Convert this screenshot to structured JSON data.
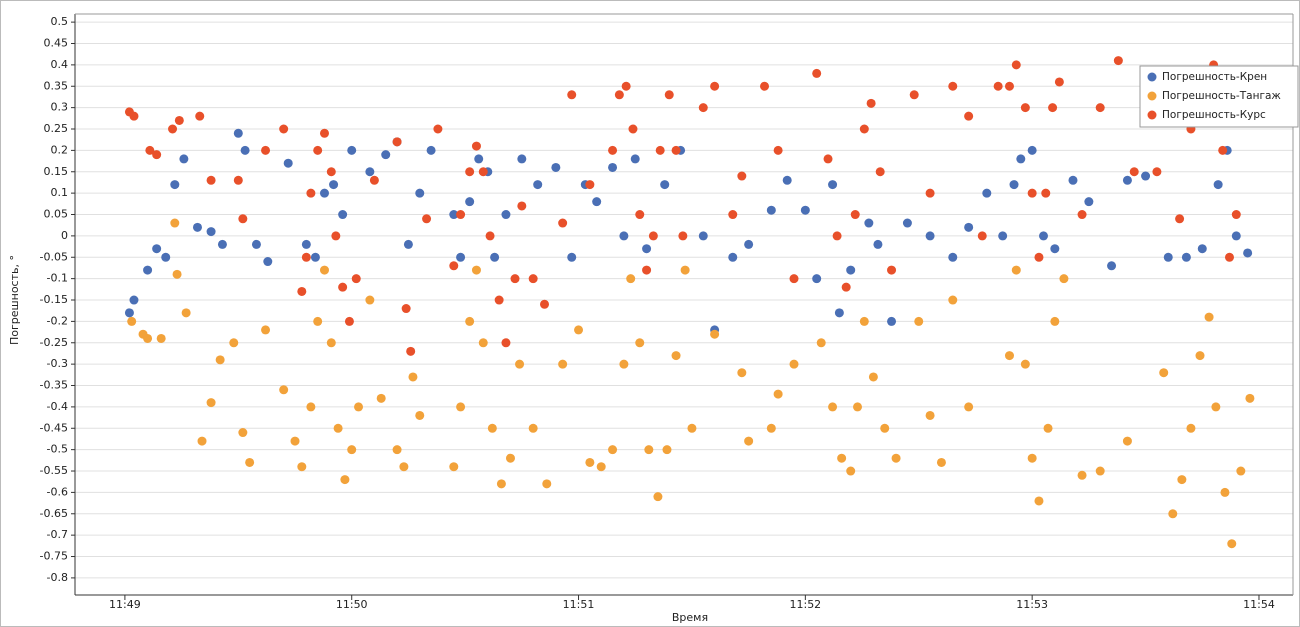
{
  "chart_data": {
    "type": "scatter",
    "x_label": "Время",
    "y_label": "Погрешность, °",
    "xlim": [
      708.78,
      714.15
    ],
    "xticks": [
      {
        "value": 709,
        "label": "11:49"
      },
      {
        "value": 710,
        "label": "11:50"
      },
      {
        "value": 711,
        "label": "11:51"
      },
      {
        "value": 712,
        "label": "11:52"
      },
      {
        "value": 713,
        "label": "11:53"
      },
      {
        "value": 714,
        "label": "11:54"
      }
    ],
    "ylim": [
      -0.84,
      0.519
    ],
    "yticks": [
      0.5,
      0.45,
      0.4,
      0.35,
      0.3,
      0.25,
      0.2,
      0.15,
      0.1,
      0.05,
      0,
      -0.05,
      -0.1,
      -0.15,
      -0.2,
      -0.25,
      -0.3,
      -0.35,
      -0.4,
      -0.45,
      -0.5,
      -0.55,
      -0.6,
      -0.65,
      -0.7,
      -0.75,
      -0.8
    ],
    "grid": true,
    "legend": "top-right",
    "series": [
      {
        "name": "Погрешность-Крен",
        "color": "#4a6fb5",
        "x": [
          709.02,
          709.04,
          709.1,
          709.14,
          709.18,
          709.22,
          709.26,
          709.32,
          709.38,
          709.43,
          709.5,
          709.53,
          709.58,
          709.63,
          709.72,
          709.8,
          709.84,
          709.88,
          709.92,
          709.96,
          710.0,
          710.08,
          710.15,
          710.2,
          710.25,
          710.3,
          710.35,
          710.45,
          710.48,
          710.52,
          710.56,
          710.6,
          710.63,
          710.68,
          710.75,
          710.82,
          710.9,
          710.97,
          711.03,
          711.08,
          711.15,
          711.2,
          711.25,
          711.3,
          711.38,
          711.45,
          711.55,
          711.6,
          711.68,
          711.75,
          711.85,
          711.92,
          712.0,
          712.05,
          712.12,
          712.15,
          712.2,
          712.28,
          712.32,
          712.38,
          712.45,
          712.55,
          712.65,
          712.72,
          712.8,
          712.87,
          712.92,
          712.95,
          713.0,
          713.05,
          713.1,
          713.18,
          713.25,
          713.35,
          713.42,
          713.5,
          713.6,
          713.68,
          713.75,
          713.82,
          713.86,
          713.9,
          713.95
        ],
        "values": [
          -0.18,
          -0.15,
          -0.08,
          -0.03,
          -0.05,
          0.12,
          0.18,
          0.02,
          0.01,
          -0.02,
          0.24,
          0.2,
          -0.02,
          -0.06,
          0.17,
          -0.02,
          -0.05,
          0.1,
          0.12,
          0.05,
          0.2,
          0.15,
          0.19,
          0.22,
          -0.02,
          0.1,
          0.2,
          0.05,
          -0.05,
          0.08,
          0.18,
          0.15,
          -0.05,
          0.05,
          0.18,
          0.12,
          0.16,
          -0.05,
          0.12,
          0.08,
          0.16,
          0,
          0.18,
          -0.03,
          0.12,
          0.2,
          0,
          -0.22,
          -0.05,
          -0.02,
          0.06,
          0.13,
          0.06,
          -0.1,
          0.12,
          -0.18,
          -0.08,
          0.03,
          -0.02,
          -0.2,
          0.03,
          0,
          -0.05,
          0.02,
          0.1,
          0,
          0.12,
          0.18,
          0.2,
          0,
          -0.03,
          0.13,
          0.08,
          -0.07,
          0.13,
          0.14,
          -0.05,
          -0.05,
          -0.03,
          0.12,
          0.2,
          0,
          -0.04
        ]
      },
      {
        "name": "Погрешность-Тангаж",
        "color": "#f2a23a",
        "x": [
          709.03,
          709.08,
          709.1,
          709.16,
          709.22,
          709.23,
          709.27,
          709.34,
          709.38,
          709.42,
          709.48,
          709.52,
          709.55,
          709.62,
          709.7,
          709.75,
          709.78,
          709.82,
          709.85,
          709.88,
          709.91,
          709.94,
          709.97,
          710.0,
          710.03,
          710.08,
          710.13,
          710.2,
          710.23,
          710.27,
          710.3,
          710.45,
          710.48,
          710.52,
          710.55,
          710.58,
          710.62,
          710.66,
          710.7,
          710.74,
          710.8,
          710.86,
          710.93,
          711.0,
          711.05,
          711.1,
          711.15,
          711.2,
          711.23,
          711.27,
          711.31,
          711.35,
          711.39,
          711.43,
          711.47,
          711.5,
          711.6,
          711.72,
          711.75,
          711.85,
          711.88,
          711.95,
          712.07,
          712.12,
          712.16,
          712.2,
          712.23,
          712.26,
          712.3,
          712.35,
          712.4,
          712.5,
          712.55,
          712.6,
          712.65,
          712.72,
          712.9,
          712.93,
          712.97,
          713.0,
          713.03,
          713.07,
          713.1,
          713.14,
          713.22,
          713.3,
          713.42,
          713.58,
          713.62,
          713.66,
          713.7,
          713.74,
          713.78,
          713.81,
          713.85,
          713.88,
          713.92,
          713.96
        ],
        "values": [
          -0.2,
          -0.23,
          -0.24,
          -0.24,
          0.03,
          -0.09,
          -0.18,
          -0.48,
          -0.39,
          -0.29,
          -0.25,
          -0.46,
          -0.53,
          -0.22,
          -0.36,
          -0.48,
          -0.54,
          -0.4,
          -0.2,
          -0.08,
          -0.25,
          -0.45,
          -0.57,
          -0.5,
          -0.4,
          -0.15,
          -0.38,
          -0.5,
          -0.54,
          -0.33,
          -0.42,
          -0.54,
          -0.4,
          -0.2,
          -0.08,
          -0.25,
          -0.45,
          -0.58,
          -0.52,
          -0.3,
          -0.45,
          -0.58,
          -0.3,
          -0.22,
          -0.53,
          -0.54,
          -0.5,
          -0.3,
          -0.1,
          -0.25,
          -0.5,
          -0.61,
          -0.5,
          -0.28,
          -0.08,
          -0.45,
          -0.23,
          -0.32,
          -0.48,
          -0.45,
          -0.37,
          -0.3,
          -0.25,
          -0.4,
          -0.52,
          -0.55,
          -0.4,
          -0.2,
          -0.33,
          -0.45,
          -0.52,
          -0.2,
          -0.42,
          -0.53,
          -0.15,
          -0.4,
          -0.28,
          -0.08,
          -0.3,
          -0.52,
          -0.62,
          -0.45,
          -0.2,
          -0.1,
          -0.56,
          -0.55,
          -0.48,
          -0.32,
          -0.65,
          -0.57,
          -0.45,
          -0.28,
          -0.19,
          -0.4,
          -0.6,
          -0.72,
          -0.55,
          -0.38
        ]
      },
      {
        "name": "Погрешность-Курс",
        "color": "#e8502a",
        "x": [
          709.02,
          709.04,
          709.11,
          709.14,
          709.21,
          709.24,
          709.33,
          709.38,
          709.5,
          709.52,
          709.62,
          709.7,
          709.78,
          709.8,
          709.82,
          709.85,
          709.88,
          709.91,
          709.93,
          709.96,
          709.99,
          710.02,
          710.1,
          710.2,
          710.24,
          710.26,
          710.33,
          710.38,
          710.45,
          710.48,
          710.52,
          710.55,
          710.58,
          710.61,
          710.65,
          710.68,
          710.72,
          710.75,
          710.8,
          710.85,
          710.93,
          710.97,
          711.05,
          711.15,
          711.18,
          711.21,
          711.24,
          711.27,
          711.3,
          711.33,
          711.36,
          711.4,
          711.43,
          711.46,
          711.55,
          711.6,
          711.68,
          711.72,
          711.82,
          711.88,
          711.95,
          712.05,
          712.1,
          712.14,
          712.18,
          712.22,
          712.26,
          712.29,
          712.33,
          712.38,
          712.48,
          712.55,
          712.65,
          712.72,
          712.78,
          712.85,
          712.9,
          712.93,
          712.97,
          713.0,
          713.03,
          713.06,
          713.09,
          713.12,
          713.22,
          713.3,
          713.38,
          713.45,
          713.55,
          713.65,
          713.7,
          713.75,
          713.8,
          713.84,
          713.87,
          713.9,
          713.93
        ],
        "values": [
          0.29,
          0.28,
          0.2,
          0.19,
          0.25,
          0.27,
          0.28,
          0.13,
          0.13,
          0.04,
          0.2,
          0.25,
          -0.13,
          -0.05,
          0.1,
          0.2,
          0.24,
          0.15,
          0,
          -0.12,
          -0.2,
          -0.1,
          0.13,
          0.22,
          -0.17,
          -0.27,
          0.04,
          0.25,
          -0.07,
          0.05,
          0.15,
          0.21,
          0.15,
          0,
          -0.15,
          -0.25,
          -0.1,
          0.07,
          -0.1,
          -0.16,
          0.03,
          0.33,
          0.12,
          0.2,
          0.33,
          0.35,
          0.25,
          0.05,
          -0.08,
          0,
          0.2,
          0.33,
          0.2,
          0,
          0.3,
          0.35,
          0.05,
          0.14,
          0.35,
          0.2,
          -0.1,
          0.38,
          0.18,
          0,
          -0.12,
          0.05,
          0.25,
          0.31,
          0.15,
          -0.08,
          0.33,
          0.1,
          0.35,
          0.28,
          0,
          0.35,
          0.35,
          0.4,
          0.3,
          0.1,
          -0.05,
          0.1,
          0.3,
          0.36,
          0.05,
          0.3,
          0.41,
          0.15,
          0.15,
          0.04,
          0.25,
          0.35,
          0.4,
          0.2,
          -0.05,
          0.05,
          0.3
        ]
      }
    ]
  }
}
